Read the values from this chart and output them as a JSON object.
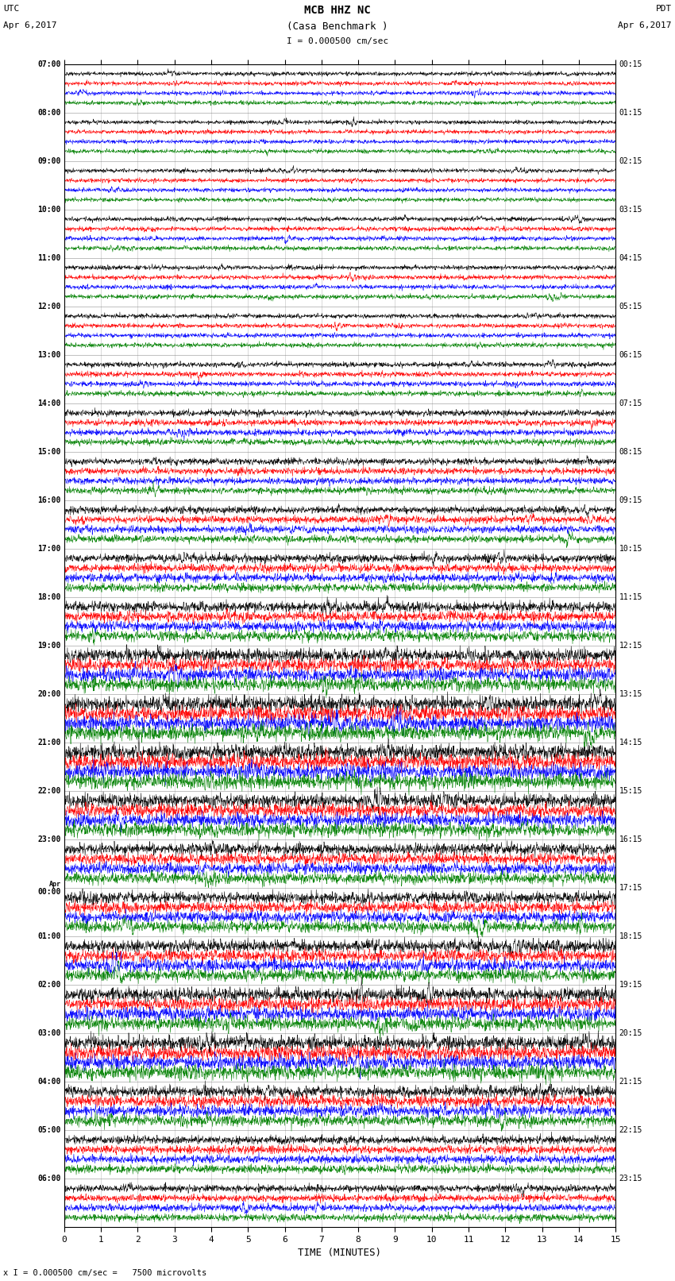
{
  "title_line1": "MCB HHZ NC",
  "title_line2": "(Casa Benchmark )",
  "scale_label": "I = 0.000500 cm/sec",
  "left_header": "UTC",
  "left_date": "Apr 6,2017",
  "right_header": "PDT",
  "right_date": "Apr 6,2017",
  "bottom_label": "TIME (MINUTES)",
  "footnote": "x I = 0.000500 cm/sec =   7500 microvolts",
  "utc_labels": [
    "07:00",
    "08:00",
    "09:00",
    "10:00",
    "11:00",
    "12:00",
    "13:00",
    "14:00",
    "15:00",
    "16:00",
    "17:00",
    "18:00",
    "19:00",
    "20:00",
    "21:00",
    "22:00",
    "23:00",
    "Apr\n00:00",
    "01:00",
    "02:00",
    "03:00",
    "04:00",
    "05:00",
    "06:00"
  ],
  "pdt_labels": [
    "00:15",
    "01:15",
    "02:15",
    "03:15",
    "04:15",
    "05:15",
    "06:15",
    "07:15",
    "08:15",
    "09:15",
    "10:15",
    "11:15",
    "12:15",
    "13:15",
    "14:15",
    "15:15",
    "16:15",
    "17:15",
    "18:15",
    "19:15",
    "20:15",
    "21:15",
    "22:15",
    "23:15"
  ],
  "trace_colors": [
    "black",
    "red",
    "blue",
    "green"
  ],
  "xmin": 0,
  "xmax": 15,
  "background_color": "white",
  "fig_width": 8.5,
  "fig_height": 16.13,
  "dpi": 100,
  "amplitudes_by_hour": [
    0.02,
    0.02,
    0.02,
    0.022,
    0.022,
    0.022,
    0.025,
    0.03,
    0.032,
    0.035,
    0.04,
    0.05,
    0.065,
    0.075,
    0.075,
    0.065,
    0.055,
    0.055,
    0.06,
    0.065,
    0.07,
    0.055,
    0.04,
    0.035
  ]
}
